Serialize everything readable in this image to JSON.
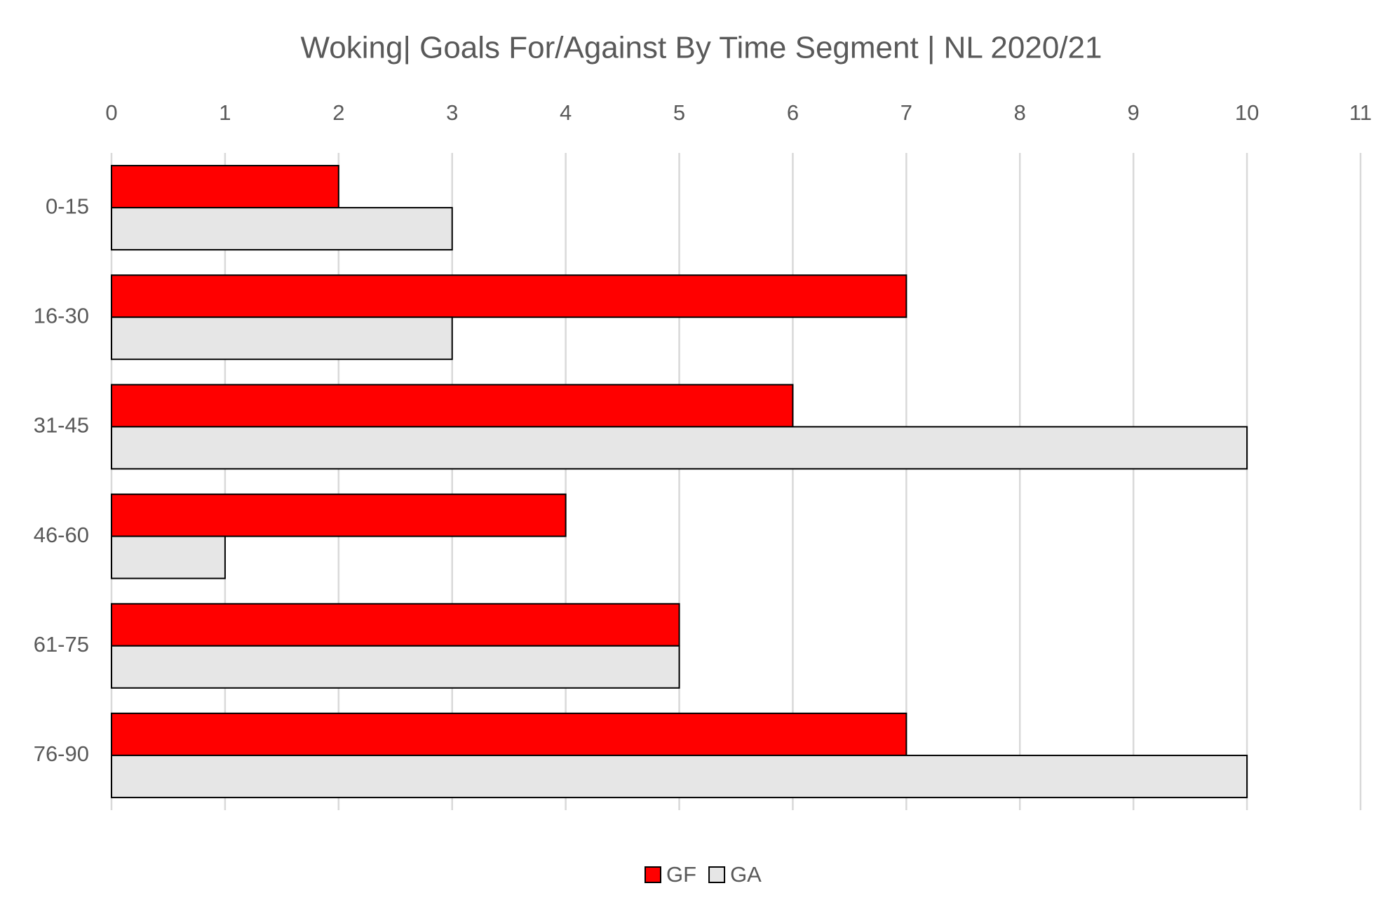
{
  "chart_data": {
    "type": "hbar",
    "title": "Woking| Goals For/Against By Time Segment | NL 2020/21",
    "categories": [
      "0-15",
      "16-30",
      "31-45",
      "46-60",
      "61-75",
      "76-90"
    ],
    "series": [
      {
        "name": "GF",
        "color": "#ff0000",
        "values": [
          2,
          7,
          6,
          4,
          5,
          7
        ]
      },
      {
        "name": "GA",
        "color": "#e6e6e6",
        "values": [
          3,
          3,
          10,
          1,
          5,
          10
        ]
      }
    ],
    "xlim": [
      0,
      11
    ],
    "xticks": [
      0,
      1,
      2,
      3,
      4,
      5,
      6,
      7,
      8,
      9,
      10,
      11
    ],
    "grid": true,
    "legend": "bottom"
  }
}
